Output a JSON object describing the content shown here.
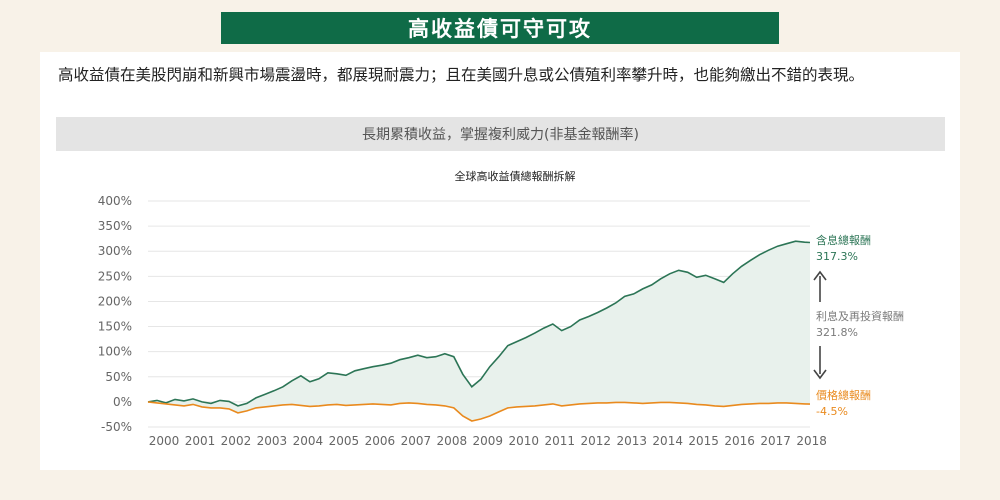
{
  "header": {
    "title": "高收益債可守可攻"
  },
  "intro_text": "高收益債在美股閃崩和新興市場震盪時，都展現耐震力；且在美國升息或公債殖利率攀升時，也能夠繳出不錯的表現。",
  "section_title": "長期累積收益，掌握複利威力(非基金報酬率)",
  "colors": {
    "brand": "#0f6b47",
    "total_return": "#2c7556",
    "price_return": "#e98a1e",
    "interest": "#7a7a7a",
    "area_fill": "#e8f1ec"
  },
  "chart_data": {
    "type": "line",
    "title": "全球高收益債總報酬拆解",
    "xlabel": "",
    "ylabel": "",
    "x_ticks": [
      "2000",
      "2001",
      "2002",
      "2003",
      "2004",
      "2005",
      "2006",
      "2007",
      "2008",
      "2009",
      "2010",
      "2011",
      "2012",
      "2013",
      "2014",
      "2015",
      "2016",
      "2017",
      "2018"
    ],
    "y_ticks": [
      "400%",
      "350%",
      "300%",
      "250%",
      "200%",
      "150%",
      "100%",
      "50%",
      "0%",
      "-50%"
    ],
    "xlim": [
      2000,
      2018.4
    ],
    "ylim": [
      -50,
      400
    ],
    "grid": true,
    "series": [
      {
        "name": "含息總報酬",
        "end_value": "317.3%",
        "x": [
          2000.0,
          2000.25,
          2000.5,
          2000.75,
          2001.0,
          2001.25,
          2001.5,
          2001.75,
          2002.0,
          2002.25,
          2002.5,
          2002.75,
          2003.0,
          2003.25,
          2003.5,
          2003.75,
          2004.0,
          2004.25,
          2004.5,
          2004.75,
          2005.0,
          2005.25,
          2005.5,
          2005.75,
          2006.0,
          2006.25,
          2006.5,
          2006.75,
          2007.0,
          2007.25,
          2007.5,
          2007.75,
          2008.0,
          2008.25,
          2008.5,
          2008.75,
          2009.0,
          2009.25,
          2009.5,
          2009.75,
          2010.0,
          2010.25,
          2010.5,
          2010.75,
          2011.0,
          2011.25,
          2011.5,
          2011.75,
          2012.0,
          2012.25,
          2012.5,
          2012.75,
          2013.0,
          2013.25,
          2013.5,
          2013.75,
          2014.0,
          2014.25,
          2014.5,
          2014.75,
          2015.0,
          2015.25,
          2015.5,
          2015.75,
          2016.0,
          2016.25,
          2016.5,
          2016.75,
          2017.0,
          2017.25,
          2017.5,
          2017.75,
          2018.0,
          2018.25,
          2018.4
        ],
        "values": [
          0,
          3,
          -2,
          5,
          2,
          6,
          0,
          -3,
          3,
          1,
          -8,
          -3,
          8,
          15,
          22,
          30,
          42,
          52,
          40,
          46,
          58,
          56,
          53,
          62,
          66,
          70,
          73,
          77,
          84,
          88,
          93,
          88,
          90,
          96,
          90,
          55,
          30,
          45,
          70,
          90,
          112,
          120,
          128,
          137,
          147,
          155,
          142,
          150,
          163,
          170,
          178,
          187,
          197,
          210,
          215,
          225,
          233,
          245,
          255,
          262,
          258,
          248,
          252,
          245,
          238,
          255,
          270,
          282,
          293,
          302,
          310,
          315,
          320,
          318,
          317.3
        ]
      },
      {
        "name": "價格總報酬",
        "end_value": "-4.5%",
        "x": [
          2000.0,
          2000.25,
          2000.5,
          2000.75,
          2001.0,
          2001.25,
          2001.5,
          2001.75,
          2002.0,
          2002.25,
          2002.5,
          2002.75,
          2003.0,
          2003.25,
          2003.5,
          2003.75,
          2004.0,
          2004.25,
          2004.5,
          2004.75,
          2005.0,
          2005.25,
          2005.5,
          2005.75,
          2006.0,
          2006.25,
          2006.5,
          2006.75,
          2007.0,
          2007.25,
          2007.5,
          2007.75,
          2008.0,
          2008.25,
          2008.5,
          2008.75,
          2009.0,
          2009.25,
          2009.5,
          2009.75,
          2010.0,
          2010.25,
          2010.5,
          2010.75,
          2011.0,
          2011.25,
          2011.5,
          2011.75,
          2012.0,
          2012.25,
          2012.5,
          2012.75,
          2013.0,
          2013.25,
          2013.5,
          2013.75,
          2014.0,
          2014.25,
          2014.5,
          2014.75,
          2015.0,
          2015.25,
          2015.5,
          2015.75,
          2016.0,
          2016.25,
          2016.5,
          2016.75,
          2017.0,
          2017.25,
          2017.5,
          2017.75,
          2018.0,
          2018.25,
          2018.4
        ],
        "values": [
          0,
          -2,
          -4,
          -6,
          -8,
          -5,
          -10,
          -12,
          -12,
          -14,
          -22,
          -18,
          -12,
          -10,
          -8,
          -6,
          -5,
          -7,
          -9,
          -8,
          -6,
          -5,
          -7,
          -6,
          -5,
          -4,
          -5,
          -6,
          -3,
          -2,
          -3,
          -5,
          -6,
          -8,
          -12,
          -28,
          -38,
          -34,
          -28,
          -20,
          -12,
          -10,
          -9,
          -8,
          -6,
          -4,
          -8,
          -6,
          -4,
          -3,
          -2,
          -2,
          -1,
          -1,
          -2,
          -3,
          -2,
          -1,
          -1,
          -2,
          -3,
          -5,
          -6,
          -8,
          -9,
          -7,
          -5,
          -4,
          -3,
          -3,
          -2,
          -2,
          -3,
          -4,
          -4.5
        ]
      }
    ],
    "annotations": {
      "interest_label": "利息及再投資報酬",
      "interest_value": "321.8%"
    }
  }
}
